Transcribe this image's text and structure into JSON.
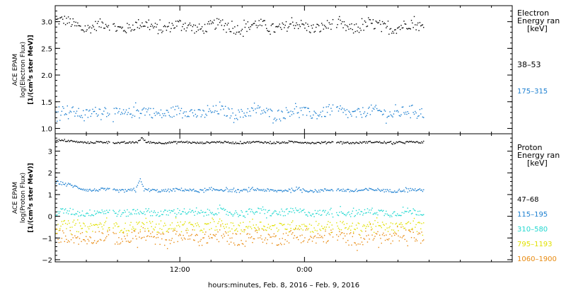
{
  "chart_data": [
    {
      "type": "scatter",
      "name_id": "electron",
      "ylabel_lines": [
        "ACE EPAM",
        "log(Electron Flux)",
        "[1/(cm²s ster MeV)]"
      ],
      "ylim": [
        0.9,
        3.3
      ],
      "yticks": [
        "1.0",
        "1.5",
        "2.0",
        "2.5",
        "3.0"
      ],
      "ytick_values": [
        1.0,
        1.5,
        2.0,
        2.5,
        3.0
      ],
      "legend_title_lines": [
        "Electron",
        "Energy ran",
        "[keV]"
      ],
      "series": [
        {
          "name": "38–53",
          "color": "#000000",
          "base": 2.92,
          "amp": 0.05,
          "noise": 0.1,
          "early_start": 3.02,
          "early_end_hour": 2.5
        },
        {
          "name": "175–315",
          "color": "#1c7fd0",
          "base": 1.31,
          "amp": 0.04,
          "noise": 0.1,
          "early_start": 1.33,
          "early_end_hour": 0
        }
      ]
    },
    {
      "type": "scatter",
      "name_id": "proton",
      "ylabel_lines": [
        "ACE EPAM",
        "log(Proton Flux)",
        "[1/(cm²s ster MeV)]"
      ],
      "ylim": [
        -2.1,
        3.8
      ],
      "yticks": [
        "−2",
        "−1",
        "0",
        "1",
        "2",
        "3"
      ],
      "ytick_values": [
        -2,
        -1,
        0,
        1,
        2,
        3
      ],
      "legend_title_lines": [
        "Proton",
        "Energy ran",
        "[keV]"
      ],
      "series": [
        {
          "name": "47–68",
          "color": "#000000",
          "base": 3.42,
          "amp": 0.02,
          "noise": 0.04,
          "early_start": 3.5,
          "early_end_hour": 3.5,
          "bump_hour": 8.3,
          "bump": 0.2
        },
        {
          "name": "115–195",
          "color": "#1c7fd0",
          "base": 1.22,
          "amp": 0.03,
          "noise": 0.07,
          "early_start": 1.58,
          "early_end_hour": 3.5,
          "bump_hour": 8.1,
          "bump": 0.5
        },
        {
          "name": "310–580",
          "color": "#22d8d0",
          "base": 0.2,
          "amp": 0.05,
          "noise": 0.16,
          "early_start": 0.25,
          "early_end_hour": 0
        },
        {
          "name": "795–1193",
          "color": "#e0e000",
          "base": -0.45,
          "amp": 0.06,
          "noise": 0.22,
          "early_start": -0.4,
          "early_end_hour": 0
        },
        {
          "name": "1060–1900",
          "color": "#e88a10",
          "base": -0.95,
          "amp": 0.08,
          "noise": 0.3,
          "early_start": -0.9,
          "early_end_hour": 0
        }
      ]
    }
  ],
  "xaxis": {
    "xlim": [
      0,
      44
    ],
    "gaps": [
      [
        5.2,
        5.5
      ],
      [
        26.7,
        27.0
      ]
    ],
    "data_end": 35.5,
    "ticks": [
      {
        "hour": 12,
        "label": "12:00"
      },
      {
        "hour": 24,
        "label": "0:00"
      }
    ],
    "minor_every": 3,
    "xlabel": "hours:minutes, Feb.  8, 2016 – Feb.  9, 2016"
  }
}
